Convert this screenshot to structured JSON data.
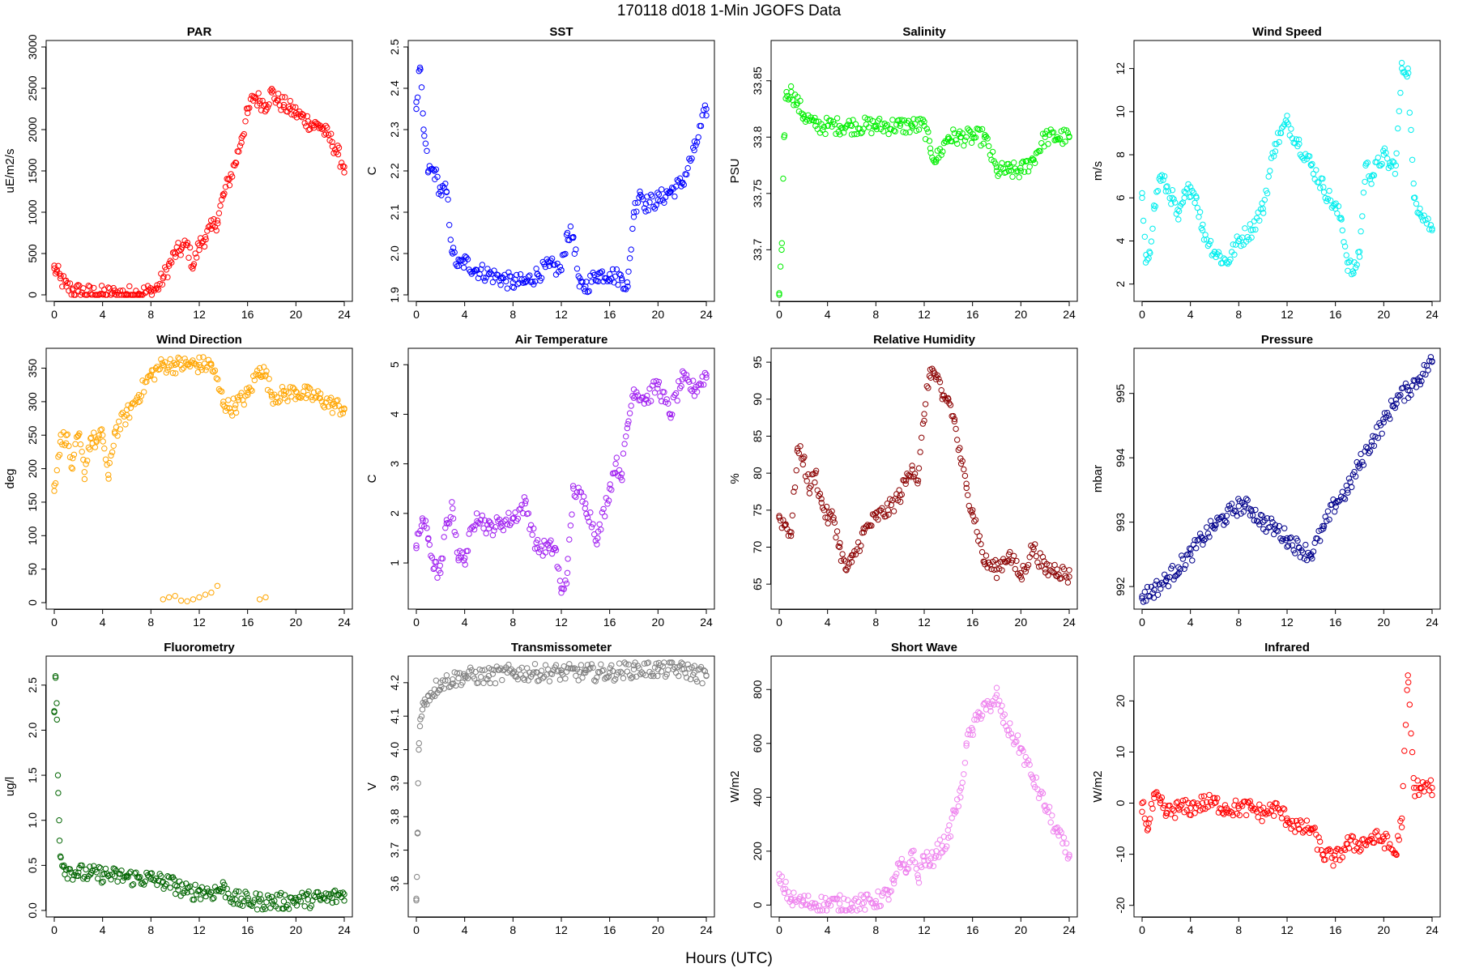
{
  "figure": {
    "title": "170118   d018   1-Min  JGOFS Data",
    "xlabel": "Hours (UTC)"
  },
  "chart_data": [
    {
      "type": "scatter",
      "title": "PAR",
      "ylabel": "uE/m2/s",
      "color": "#ff0000",
      "xlim": [
        0,
        24
      ],
      "ylim": [
        0,
        3000
      ],
      "xticks": [
        0,
        4,
        8,
        12,
        16,
        20,
        24
      ],
      "yticks": [
        0,
        500,
        1000,
        1500,
        2000,
        2500,
        3000
      ],
      "x": [
        0,
        0.2,
        0.5,
        1,
        1.5,
        2,
        3,
        4,
        5,
        6,
        7,
        8,
        8.5,
        9,
        9.5,
        10,
        10.5,
        11,
        11.5,
        12,
        12.5,
        13,
        13.5,
        14,
        14.5,
        15,
        15.5,
        16,
        16.5,
        17,
        17.5,
        18,
        18.5,
        19,
        19.5,
        20,
        20.5,
        21,
        21.5,
        22,
        22.5,
        23,
        23.5,
        24
      ],
      "y": [
        320,
        280,
        200,
        100,
        60,
        40,
        20,
        10,
        10,
        10,
        15,
        40,
        80,
        200,
        350,
        500,
        550,
        600,
        350,
        600,
        700,
        800,
        900,
        1200,
        1400,
        1600,
        1900,
        2200,
        2400,
        2350,
        2300,
        2450,
        2350,
        2300,
        2250,
        2200,
        2150,
        2100,
        2050,
        2050,
        1950,
        1850,
        1700,
        1550
      ]
    },
    {
      "type": "scatter",
      "title": "SST",
      "ylabel": "C",
      "color": "#0000ff",
      "xlim": [
        0,
        24
      ],
      "ylim": [
        1.9,
        2.5
      ],
      "xticks": [
        0,
        4,
        8,
        12,
        16,
        20,
        24
      ],
      "yticks": [
        1.9,
        2.0,
        2.1,
        2.2,
        2.3,
        2.4,
        2.5
      ],
      "x": [
        0,
        0.3,
        0.6,
        1,
        1.5,
        2,
        2.5,
        3,
        3.5,
        4,
        5,
        6,
        7,
        8,
        9,
        10,
        11,
        12,
        12.5,
        13,
        13.5,
        14,
        15,
        16,
        17,
        17.5,
        18,
        18.5,
        19,
        20,
        21,
        22,
        23,
        24
      ],
      "y": [
        2.35,
        2.45,
        2.3,
        2.2,
        2.2,
        2.15,
        2.15,
        2.0,
        1.97,
        1.98,
        1.96,
        1.95,
        1.94,
        1.93,
        1.93,
        1.95,
        1.97,
        1.96,
        2.05,
        2.04,
        1.92,
        1.92,
        1.95,
        1.95,
        1.94,
        1.92,
        2.1,
        2.15,
        2.12,
        2.13,
        2.15,
        2.17,
        2.25,
        2.35
      ]
    },
    {
      "type": "scatter",
      "title": "Salinity",
      "ylabel": "PSU",
      "color": "#00ee00",
      "xlim": [
        0,
        24
      ],
      "ylim": [
        33.66,
        33.88
      ],
      "xticks": [
        0,
        4,
        8,
        12,
        16,
        20,
        24
      ],
      "yticks": [
        33.7,
        33.75,
        33.8,
        33.85
      ],
      "x": [
        0,
        0.2,
        0.4,
        0.6,
        1,
        1.5,
        2,
        3,
        4,
        5,
        6,
        8,
        10,
        11,
        12,
        12.5,
        13,
        14,
        15,
        16,
        17,
        18,
        19,
        20,
        21,
        22,
        23,
        24
      ],
      "y": [
        33.66,
        33.7,
        33.8,
        33.84,
        33.84,
        33.83,
        33.82,
        33.81,
        33.81,
        33.81,
        33.81,
        33.81,
        33.81,
        33.81,
        33.81,
        33.79,
        33.78,
        33.8,
        33.8,
        33.8,
        33.8,
        33.77,
        33.77,
        33.77,
        33.78,
        33.8,
        33.8,
        33.8
      ]
    },
    {
      "type": "scatter",
      "title": "Wind Speed",
      "ylabel": "m/s",
      "color": "#00eeee",
      "xlim": [
        0,
        24
      ],
      "ylim": [
        1.5,
        13
      ],
      "xticks": [
        0,
        4,
        8,
        12,
        16,
        20,
        24
      ],
      "yticks": [
        2,
        4,
        6,
        8,
        10,
        12
      ],
      "x": [
        0,
        0.3,
        0.6,
        1,
        1.5,
        2,
        2.5,
        3,
        3.5,
        4,
        4.5,
        5,
        6,
        7,
        8,
        9,
        10,
        11,
        11.5,
        12,
        13,
        14,
        15,
        16,
        16.5,
        17,
        17.5,
        18,
        18.5,
        19,
        20,
        20.5,
        21,
        21.5,
        22,
        22.5,
        23,
        24
      ],
      "y": [
        6,
        3,
        3.5,
        5.5,
        7,
        6.5,
        6,
        5,
        6,
        6.5,
        6,
        4.5,
        3.5,
        3,
        4,
        4.5,
        5.5,
        8.5,
        9,
        9.5,
        8.5,
        7.5,
        6.5,
        5.5,
        5,
        3,
        2.5,
        3.5,
        7.5,
        7,
        8,
        7.5,
        7.5,
        12,
        12,
        6,
        5.5,
        4.5
      ]
    },
    {
      "type": "scatter",
      "title": "Wind Direction",
      "ylabel": "deg",
      "color": "#ffa500",
      "xlim": [
        0,
        24
      ],
      "ylim": [
        0,
        370
      ],
      "xticks": [
        0,
        4,
        8,
        12,
        16,
        20,
        24
      ],
      "yticks": [
        0,
        50,
        100,
        150,
        200,
        250,
        300,
        350
      ],
      "x": [
        0,
        0.5,
        1,
        1.5,
        2,
        2.5,
        3,
        3.5,
        4,
        4.5,
        5,
        6,
        7,
        8,
        9,
        10,
        11,
        12,
        13,
        14,
        14.5,
        15,
        16,
        17,
        17.5,
        18,
        19,
        20,
        21,
        22,
        23,
        24
      ],
      "y": [
        175,
        240,
        250,
        200,
        250,
        195,
        245,
        240,
        250,
        185,
        255,
        280,
        310,
        340,
        355,
        355,
        355,
        355,
        355,
        300,
        290,
        295,
        310,
        350,
        340,
        310,
        310,
        315,
        310,
        305,
        295,
        290
      ],
      "outliers_x": [
        9,
        9.5,
        10,
        10.5,
        11,
        11.5,
        12,
        12.5,
        13,
        13.5,
        17,
        17.5
      ],
      "outliers_y": [
        5,
        8,
        10,
        3,
        2,
        5,
        8,
        12,
        15,
        25,
        5,
        8
      ]
    },
    {
      "type": "scatter",
      "title": "Air Temperature",
      "ylabel": "C",
      "color": "#a020f0",
      "xlim": [
        0,
        24
      ],
      "ylim": [
        0.2,
        5.2
      ],
      "xticks": [
        0,
        4,
        8,
        12,
        16,
        20,
        24
      ],
      "yticks": [
        1,
        2,
        3,
        4,
        5
      ],
      "x": [
        0,
        0.5,
        1,
        1.5,
        2,
        2.5,
        3,
        3.5,
        4,
        5,
        6,
        7,
        8,
        9,
        10,
        11,
        11.5,
        12,
        12.5,
        13,
        14,
        15,
        16,
        16.5,
        17,
        17.5,
        18,
        19,
        20,
        21,
        22,
        23,
        24
      ],
      "y": [
        1.3,
        1.9,
        1.5,
        0.9,
        0.8,
        1.8,
        2.1,
        1.1,
        1.1,
        2.0,
        1.7,
        1.8,
        1.9,
        2.2,
        1.3,
        1.3,
        1.3,
        0.4,
        0.8,
        2.5,
        2.2,
        1.5,
        2.5,
        3.0,
        2.8,
        3.8,
        4.5,
        4.3,
        4.6,
        4.0,
        4.7,
        4.5,
        4.8
      ]
    },
    {
      "type": "scatter",
      "title": "Relative Humidity",
      "ylabel": "%",
      "color": "#8b0000",
      "xlim": [
        0,
        24
      ],
      "ylim": [
        62.5,
        96
      ],
      "xticks": [
        0,
        4,
        8,
        12,
        16,
        20,
        24
      ],
      "yticks": [
        65,
        70,
        75,
        80,
        85,
        90,
        95
      ],
      "x": [
        0,
        0.5,
        1,
        1.5,
        2,
        2.5,
        3,
        3.5,
        4,
        4.5,
        5,
        5.5,
        6,
        7,
        8,
        9,
        10,
        10.5,
        11,
        11.5,
        12,
        12.5,
        13,
        13.5,
        14,
        14.5,
        15,
        15.5,
        16,
        17,
        18,
        19,
        20,
        21,
        22,
        23,
        24
      ],
      "y": [
        74,
        73,
        72,
        83,
        82,
        78,
        80,
        76,
        74,
        74,
        70,
        67,
        68,
        72,
        74,
        75,
        77,
        79,
        81,
        79,
        88,
        94,
        93,
        90,
        90,
        87,
        82,
        78,
        75,
        68,
        67,
        69,
        66,
        70,
        67,
        67,
        66
      ]
    },
    {
      "type": "scatter",
      "title": "Pressure",
      "ylabel": "mbar",
      "color": "#00008b",
      "xlim": [
        0,
        24
      ],
      "ylim": [
        991.75,
        995.6
      ],
      "xticks": [
        0,
        4,
        8,
        12,
        16,
        20,
        24
      ],
      "yticks": [
        992,
        993,
        994,
        995
      ],
      "x": [
        0,
        1,
        2,
        3,
        4,
        5,
        6,
        7,
        8,
        8.5,
        9,
        10,
        11,
        12,
        13,
        14,
        15,
        16,
        17,
        18,
        19,
        20,
        21,
        22,
        23,
        24
      ],
      "y": [
        991.85,
        991.95,
        992.1,
        992.3,
        992.5,
        992.75,
        992.95,
        993.1,
        993.25,
        993.25,
        993.2,
        993.0,
        992.9,
        992.75,
        992.6,
        992.5,
        992.9,
        993.3,
        993.5,
        993.9,
        994.25,
        994.55,
        994.9,
        995.05,
        995.25,
        995.5
      ]
    },
    {
      "type": "scatter",
      "title": "Fluorometry",
      "ylabel": "ug/l",
      "color": "#006400",
      "xlim": [
        0,
        24
      ],
      "ylim": [
        0,
        2.75
      ],
      "xticks": [
        0,
        4,
        8,
        12,
        16,
        20,
        24
      ],
      "yticks": [
        0.0,
        0.5,
        1.0,
        1.5,
        2.0,
        2.5
      ],
      "x": [
        0,
        0.1,
        0.2,
        0.3,
        0.4,
        0.5,
        0.8,
        1,
        2,
        3,
        4,
        5,
        6,
        7,
        8,
        9,
        10,
        11,
        12,
        13,
        14,
        15,
        16,
        17,
        18,
        19,
        20,
        21,
        22,
        23,
        24
      ],
      "y": [
        2.2,
        2.6,
        2.3,
        1.5,
        1.0,
        0.6,
        0.5,
        0.45,
        0.42,
        0.4,
        0.4,
        0.38,
        0.37,
        0.36,
        0.35,
        0.32,
        0.28,
        0.2,
        0.22,
        0.2,
        0.25,
        0.12,
        0.11,
        0.1,
        0.1,
        0.1,
        0.12,
        0.12,
        0.13,
        0.14,
        0.18
      ]
    },
    {
      "type": "scatter",
      "title": "Transmissometer",
      "ylabel": "V",
      "color": "#808080",
      "xlim": [
        0,
        24
      ],
      "ylim": [
        3.52,
        4.26
      ],
      "xticks": [
        0,
        4,
        8,
        12,
        16,
        20,
        24
      ],
      "yticks": [
        3.6,
        3.7,
        3.8,
        3.9,
        4.0,
        4.1,
        4.2
      ],
      "x": [
        0,
        0.05,
        0.1,
        0.15,
        0.2,
        0.3,
        0.5,
        0.7,
        1,
        1.5,
        2,
        3,
        4,
        6,
        8,
        10,
        12,
        14,
        16,
        18,
        20,
        22,
        23,
        24
      ],
      "y": [
        3.55,
        3.62,
        3.75,
        3.9,
        4.0,
        4.07,
        4.12,
        4.15,
        4.16,
        4.18,
        4.2,
        4.21,
        4.22,
        4.22,
        4.23,
        4.23,
        4.23,
        4.23,
        4.23,
        4.24,
        4.24,
        4.24,
        4.23,
        4.22
      ]
    },
    {
      "type": "scatter",
      "title": "Short Wave",
      "ylabel": "W/m2",
      "color": "#ee82ee",
      "xlim": [
        0,
        24
      ],
      "ylim": [
        -20,
        900
      ],
      "xticks": [
        0,
        4,
        8,
        12,
        16,
        20,
        24
      ],
      "yticks": [
        0,
        200,
        400,
        600,
        800
      ],
      "x": [
        0,
        0.5,
        1,
        2,
        3,
        4,
        5,
        6,
        7,
        8,
        9,
        9.5,
        10,
        10.5,
        11,
        11.5,
        12,
        12.5,
        13,
        13.5,
        14,
        14.5,
        15,
        15.5,
        16,
        16.5,
        17,
        17.5,
        18,
        18.5,
        19,
        20,
        21,
        22,
        23,
        24
      ],
      "y": [
        90,
        60,
        20,
        10,
        5,
        5,
        5,
        5,
        8,
        15,
        40,
        80,
        150,
        120,
        200,
        100,
        180,
        150,
        200,
        220,
        250,
        350,
        400,
        600,
        650,
        700,
        750,
        720,
        780,
        700,
        650,
        580,
        470,
        370,
        270,
        180
      ]
    },
    {
      "type": "scatter",
      "title": "Infrared",
      "ylabel": "W/m2",
      "color": "#ff0000",
      "xlim": [
        0,
        24
      ],
      "ylim": [
        -21,
        27.5
      ],
      "xticks": [
        0,
        4,
        8,
        12,
        16,
        20,
        24
      ],
      "yticks": [
        -20,
        -10,
        0,
        10,
        20
      ],
      "x": [
        0,
        0.5,
        1,
        1.5,
        2,
        3,
        4,
        5,
        6,
        7,
        8,
        9,
        10,
        11,
        12,
        13,
        14,
        15,
        16,
        17,
        18,
        19,
        20,
        21,
        21.5,
        22,
        22.5,
        23,
        24
      ],
      "y": [
        0,
        -5,
        1,
        0,
        -2,
        -1,
        -1,
        0,
        0,
        -1,
        -1,
        -1,
        -2,
        -1,
        -3,
        -5,
        -5,
        -10,
        -11,
        -8,
        -8,
        -7,
        -7,
        -10,
        -3,
        25,
        3,
        3,
        3
      ]
    }
  ]
}
